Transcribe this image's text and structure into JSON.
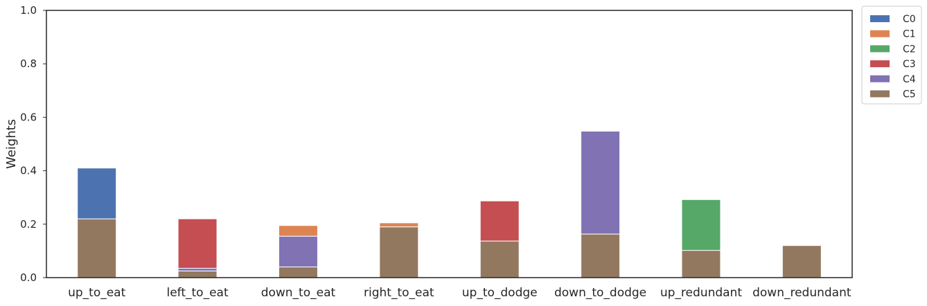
{
  "chart_data": {
    "type": "bar",
    "stacked": true,
    "title": "",
    "xlabel": "",
    "ylabel": "Weights",
    "ylim": [
      0,
      1
    ],
    "yticks": [
      "0.0",
      "0.2",
      "0.4",
      "0.6",
      "0.8",
      "1.0"
    ],
    "grid": false,
    "legend_position": "outside-top-right",
    "categories": [
      "up_to_eat",
      "left_to_eat",
      "down_to_eat",
      "right_to_eat",
      "up_to_dodge",
      "down_to_dodge",
      "up_redundant",
      "down_redundant"
    ],
    "series": [
      {
        "name": "C0",
        "color": "#4c72b0",
        "values": [
          0.19,
          0,
          0,
          0,
          0,
          0,
          0,
          0
        ]
      },
      {
        "name": "C1",
        "color": "#dd8452",
        "values": [
          0,
          0,
          0.04,
          0.015,
          0,
          0,
          0,
          0
        ]
      },
      {
        "name": "C2",
        "color": "#55a868",
        "values": [
          0,
          0,
          0,
          0,
          0,
          0,
          0.19,
          0
        ]
      },
      {
        "name": "C3",
        "color": "#c44e52",
        "values": [
          0,
          0.185,
          0,
          0,
          0.15,
          0,
          0,
          0
        ]
      },
      {
        "name": "C4",
        "color": "#8172b3",
        "values": [
          0,
          0.01,
          0.115,
          0,
          0,
          0.385,
          0,
          0
        ]
      },
      {
        "name": "C5",
        "color": "#937860",
        "values": [
          0.22,
          0.025,
          0.04,
          0.19,
          0.137,
          0.163,
          0.102,
          0.12
        ]
      }
    ]
  }
}
